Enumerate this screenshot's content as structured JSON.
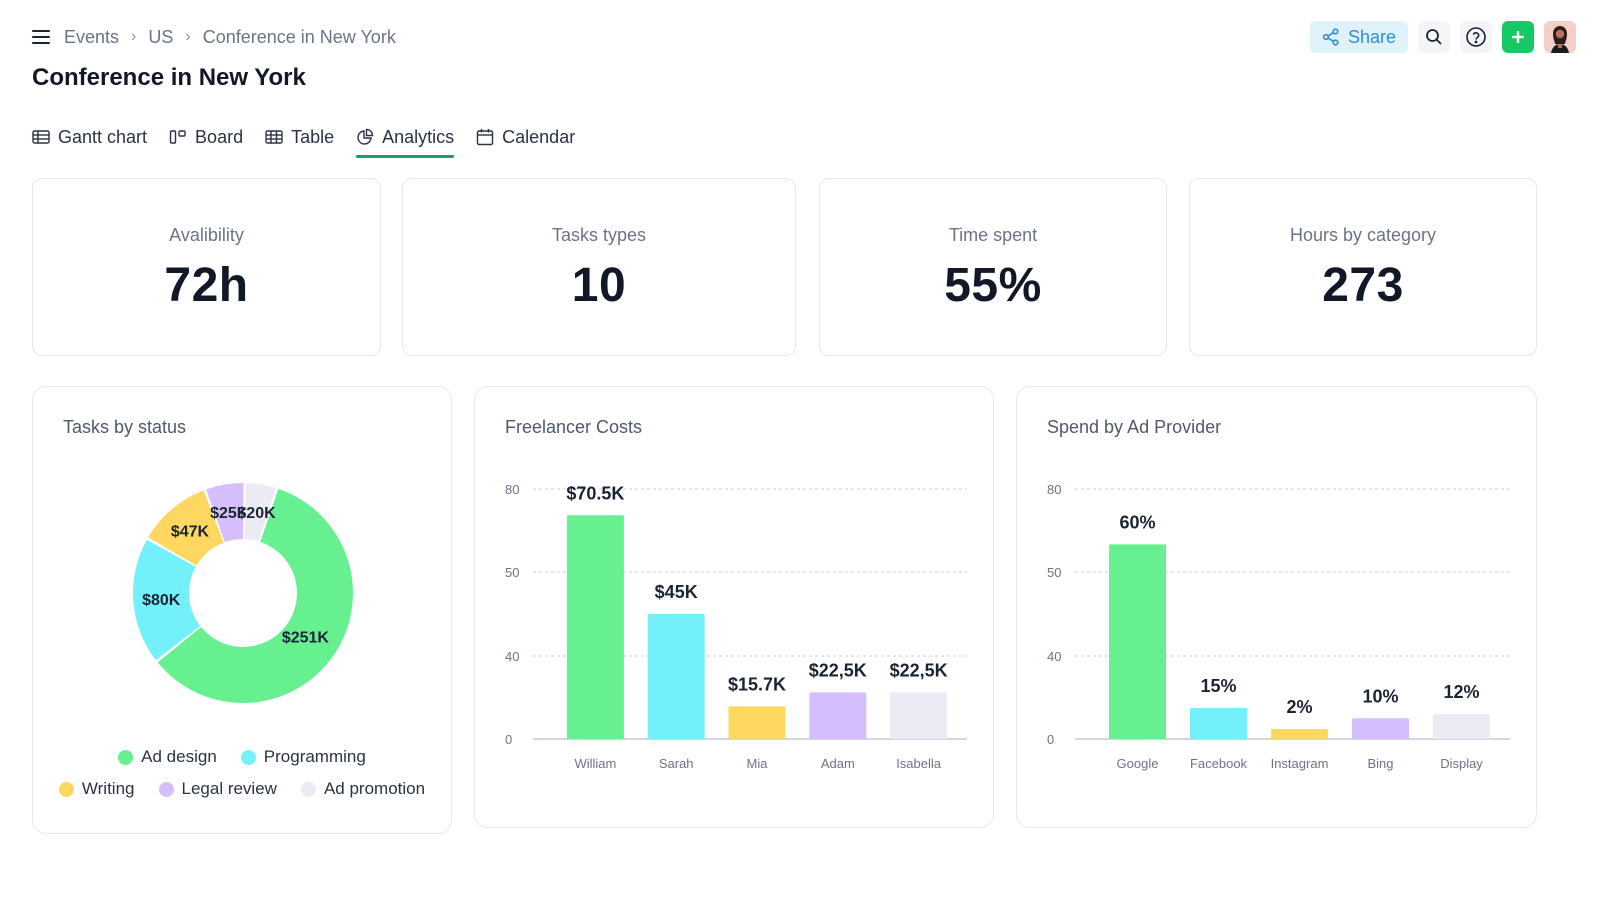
{
  "breadcrumb": [
    "Events",
    "US",
    "Conference in New York"
  ],
  "header": {
    "share_label": "Share"
  },
  "page_title": "Conference in New York",
  "tabs": [
    {
      "label": "Gantt chart",
      "icon": "gantt-icon",
      "active": false
    },
    {
      "label": "Board",
      "icon": "board-icon",
      "active": false
    },
    {
      "label": "Table",
      "icon": "table-icon",
      "active": false
    },
    {
      "label": "Analytics",
      "icon": "analytics-icon",
      "active": true
    },
    {
      "label": "Calendar",
      "icon": "calendar-icon",
      "active": false
    }
  ],
  "kpis": [
    {
      "label": "Avalibility",
      "value": "72h"
    },
    {
      "label": "Tasks types",
      "value": "10"
    },
    {
      "label": "Time spent",
      "value": "55%"
    },
    {
      "label": "Hours by category",
      "value": "273"
    }
  ],
  "colors": {
    "accent": "#12a36b",
    "green": "#66f08f",
    "cyan": "#74f0fb",
    "yellow": "#fdd75f",
    "purple": "#d6bdfc",
    "gray": "#ecebf4"
  },
  "chart_data": [
    {
      "type": "pie",
      "title": "Tasks by status",
      "categories": [
        "Ad design",
        "Programming",
        "Writing",
        "Legal review",
        "Ad promotion"
      ],
      "values": [
        251,
        80,
        47,
        25,
        20
      ],
      "labels": [
        "$251K",
        "$80K",
        "$47K",
        "$25K",
        "$20K"
      ],
      "colors": [
        "#66f08f",
        "#74f0fb",
        "#fdd75f",
        "#d6bdfc",
        "#ecebf4"
      ],
      "legend": "bottom"
    },
    {
      "type": "bar",
      "title": "Freelancer Costs",
      "categories": [
        "William",
        "Sarah",
        "Mia",
        "Adam",
        "Isabella"
      ],
      "values": [
        70.5,
        45,
        15.7,
        22.5,
        22.5
      ],
      "labels": [
        "$70.5K",
        "$45K",
        "$15.7K",
        "$22,5K",
        "$22,5K"
      ],
      "colors": [
        "#66f08f",
        "#74f0fb",
        "#fdd75f",
        "#d6bdfc",
        "#ecebf4"
      ],
      "yticks": [
        "0",
        "40",
        "50",
        "80"
      ],
      "grid": true
    },
    {
      "type": "bar",
      "title": "Spend by Ad Provider",
      "categories": [
        "Google",
        "Facebook",
        "Instagram",
        "Bing",
        "Display"
      ],
      "values": [
        60,
        15,
        2,
        10,
        12
      ],
      "labels": [
        "60%",
        "15%",
        "2%",
        "10%",
        "12%"
      ],
      "colors": [
        "#66f08f",
        "#74f0fb",
        "#fdd75f",
        "#d6bdfc",
        "#ecebf4"
      ],
      "yticks": [
        "0",
        "40",
        "50",
        "80"
      ],
      "grid": true
    }
  ]
}
